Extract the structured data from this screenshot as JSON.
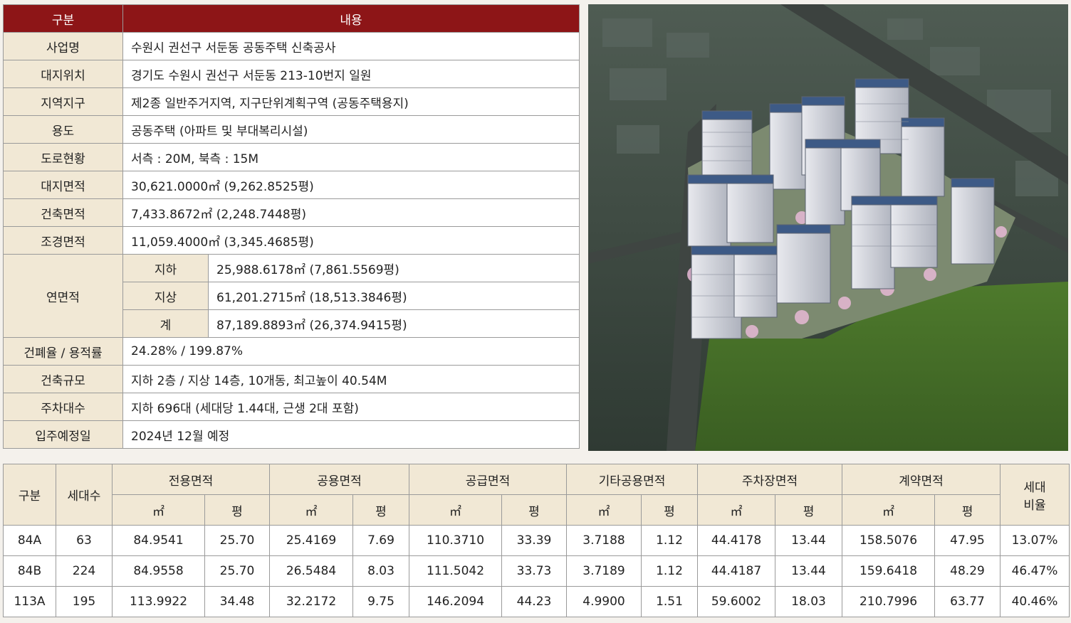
{
  "info_table": {
    "header": {
      "col1": "구분",
      "col2": "내용"
    },
    "rows": [
      {
        "label": "사업명",
        "value": "수원시 권선구 서둔동 공동주택 신축공사"
      },
      {
        "label": "대지위치",
        "value": "경기도 수원시 권선구 서둔동 213-10번지 일원"
      },
      {
        "label": "지역지구",
        "value": "제2종 일반주거지역, 지구단위계획구역 (공동주택용지)"
      },
      {
        "label": "용도",
        "value": "공동주택 (아파트 및 부대복리시설)"
      },
      {
        "label": "도로현황",
        "value": "서측 : 20M, 북측 : 15M"
      },
      {
        "label": "대지면적",
        "value": "30,621.0000㎡ (9,262.8525평)"
      },
      {
        "label": "건축면적",
        "value": "7,433.8672㎡ (2,248.7448평)"
      },
      {
        "label": "조경면적",
        "value": "11,059.4000㎡ (3,345.4685평)"
      }
    ],
    "gross_area": {
      "label": "연면적",
      "rows": [
        {
          "sublabel": "지하",
          "value": "25,988.6178㎡ (7,861.5569평)"
        },
        {
          "sublabel": "지상",
          "value": "61,201.2715㎡ (18,513.3846평)"
        },
        {
          "sublabel": "계",
          "value": "87,189.8893㎡ (26,374.9415평)"
        }
      ]
    },
    "rows_after": [
      {
        "label": "건폐율 / 용적률",
        "value": "24.28% / 199.87%"
      },
      {
        "label": "건축규모",
        "value": "지하 2층 / 지상 14층, 10개동, 최고높이 40.54M"
      },
      {
        "label": "주차대수",
        "value": "지하 696대 (세대당 1.44대, 근생 2대 포함)"
      },
      {
        "label": "입주예정일",
        "value": "2024년 12월 예정"
      }
    ]
  },
  "unit_table": {
    "headers": {
      "type": "구분",
      "households": "세대수",
      "exclusive": "전용면적",
      "common": "공용면적",
      "supply": "공급면적",
      "other_common": "기타공용면적",
      "parking": "주차장면적",
      "contract": "계약면적",
      "ratio_line1": "세대",
      "ratio_line2": "비율",
      "m2": "㎡",
      "pyeong": "평"
    },
    "rows": [
      {
        "type": "84A",
        "households": "63",
        "exclusive_m2": "84.9541",
        "exclusive_py": "25.70",
        "common_m2": "25.4169",
        "common_py": "7.69",
        "supply_m2": "110.3710",
        "supply_py": "33.39",
        "other_m2": "3.7188",
        "other_py": "1.12",
        "parking_m2": "44.4178",
        "parking_py": "13.44",
        "contract_m2": "158.5076",
        "contract_py": "47.95",
        "ratio": "13.07%"
      },
      {
        "type": "84B",
        "households": "224",
        "exclusive_m2": "84.9558",
        "exclusive_py": "25.70",
        "common_m2": "26.5484",
        "common_py": "8.03",
        "supply_m2": "111.5042",
        "supply_py": "33.73",
        "other_m2": "3.7189",
        "other_py": "1.12",
        "parking_m2": "44.4187",
        "parking_py": "13.44",
        "contract_m2": "159.6418",
        "contract_py": "48.29",
        "ratio": "46.47%"
      },
      {
        "type": "113A",
        "households": "195",
        "exclusive_m2": "113.9922",
        "exclusive_py": "34.48",
        "common_m2": "32.2172",
        "common_py": "9.75",
        "supply_m2": "146.2094",
        "supply_py": "44.23",
        "other_m2": "4.9900",
        "other_py": "1.51",
        "parking_m2": "59.6002",
        "parking_py": "18.03",
        "contract_m2": "210.7996",
        "contract_py": "63.77",
        "ratio": "40.46%"
      }
    ]
  },
  "colors": {
    "header_red": "#8d1517",
    "label_beige": "#f1e8d5",
    "border": "#9a9a9a"
  }
}
